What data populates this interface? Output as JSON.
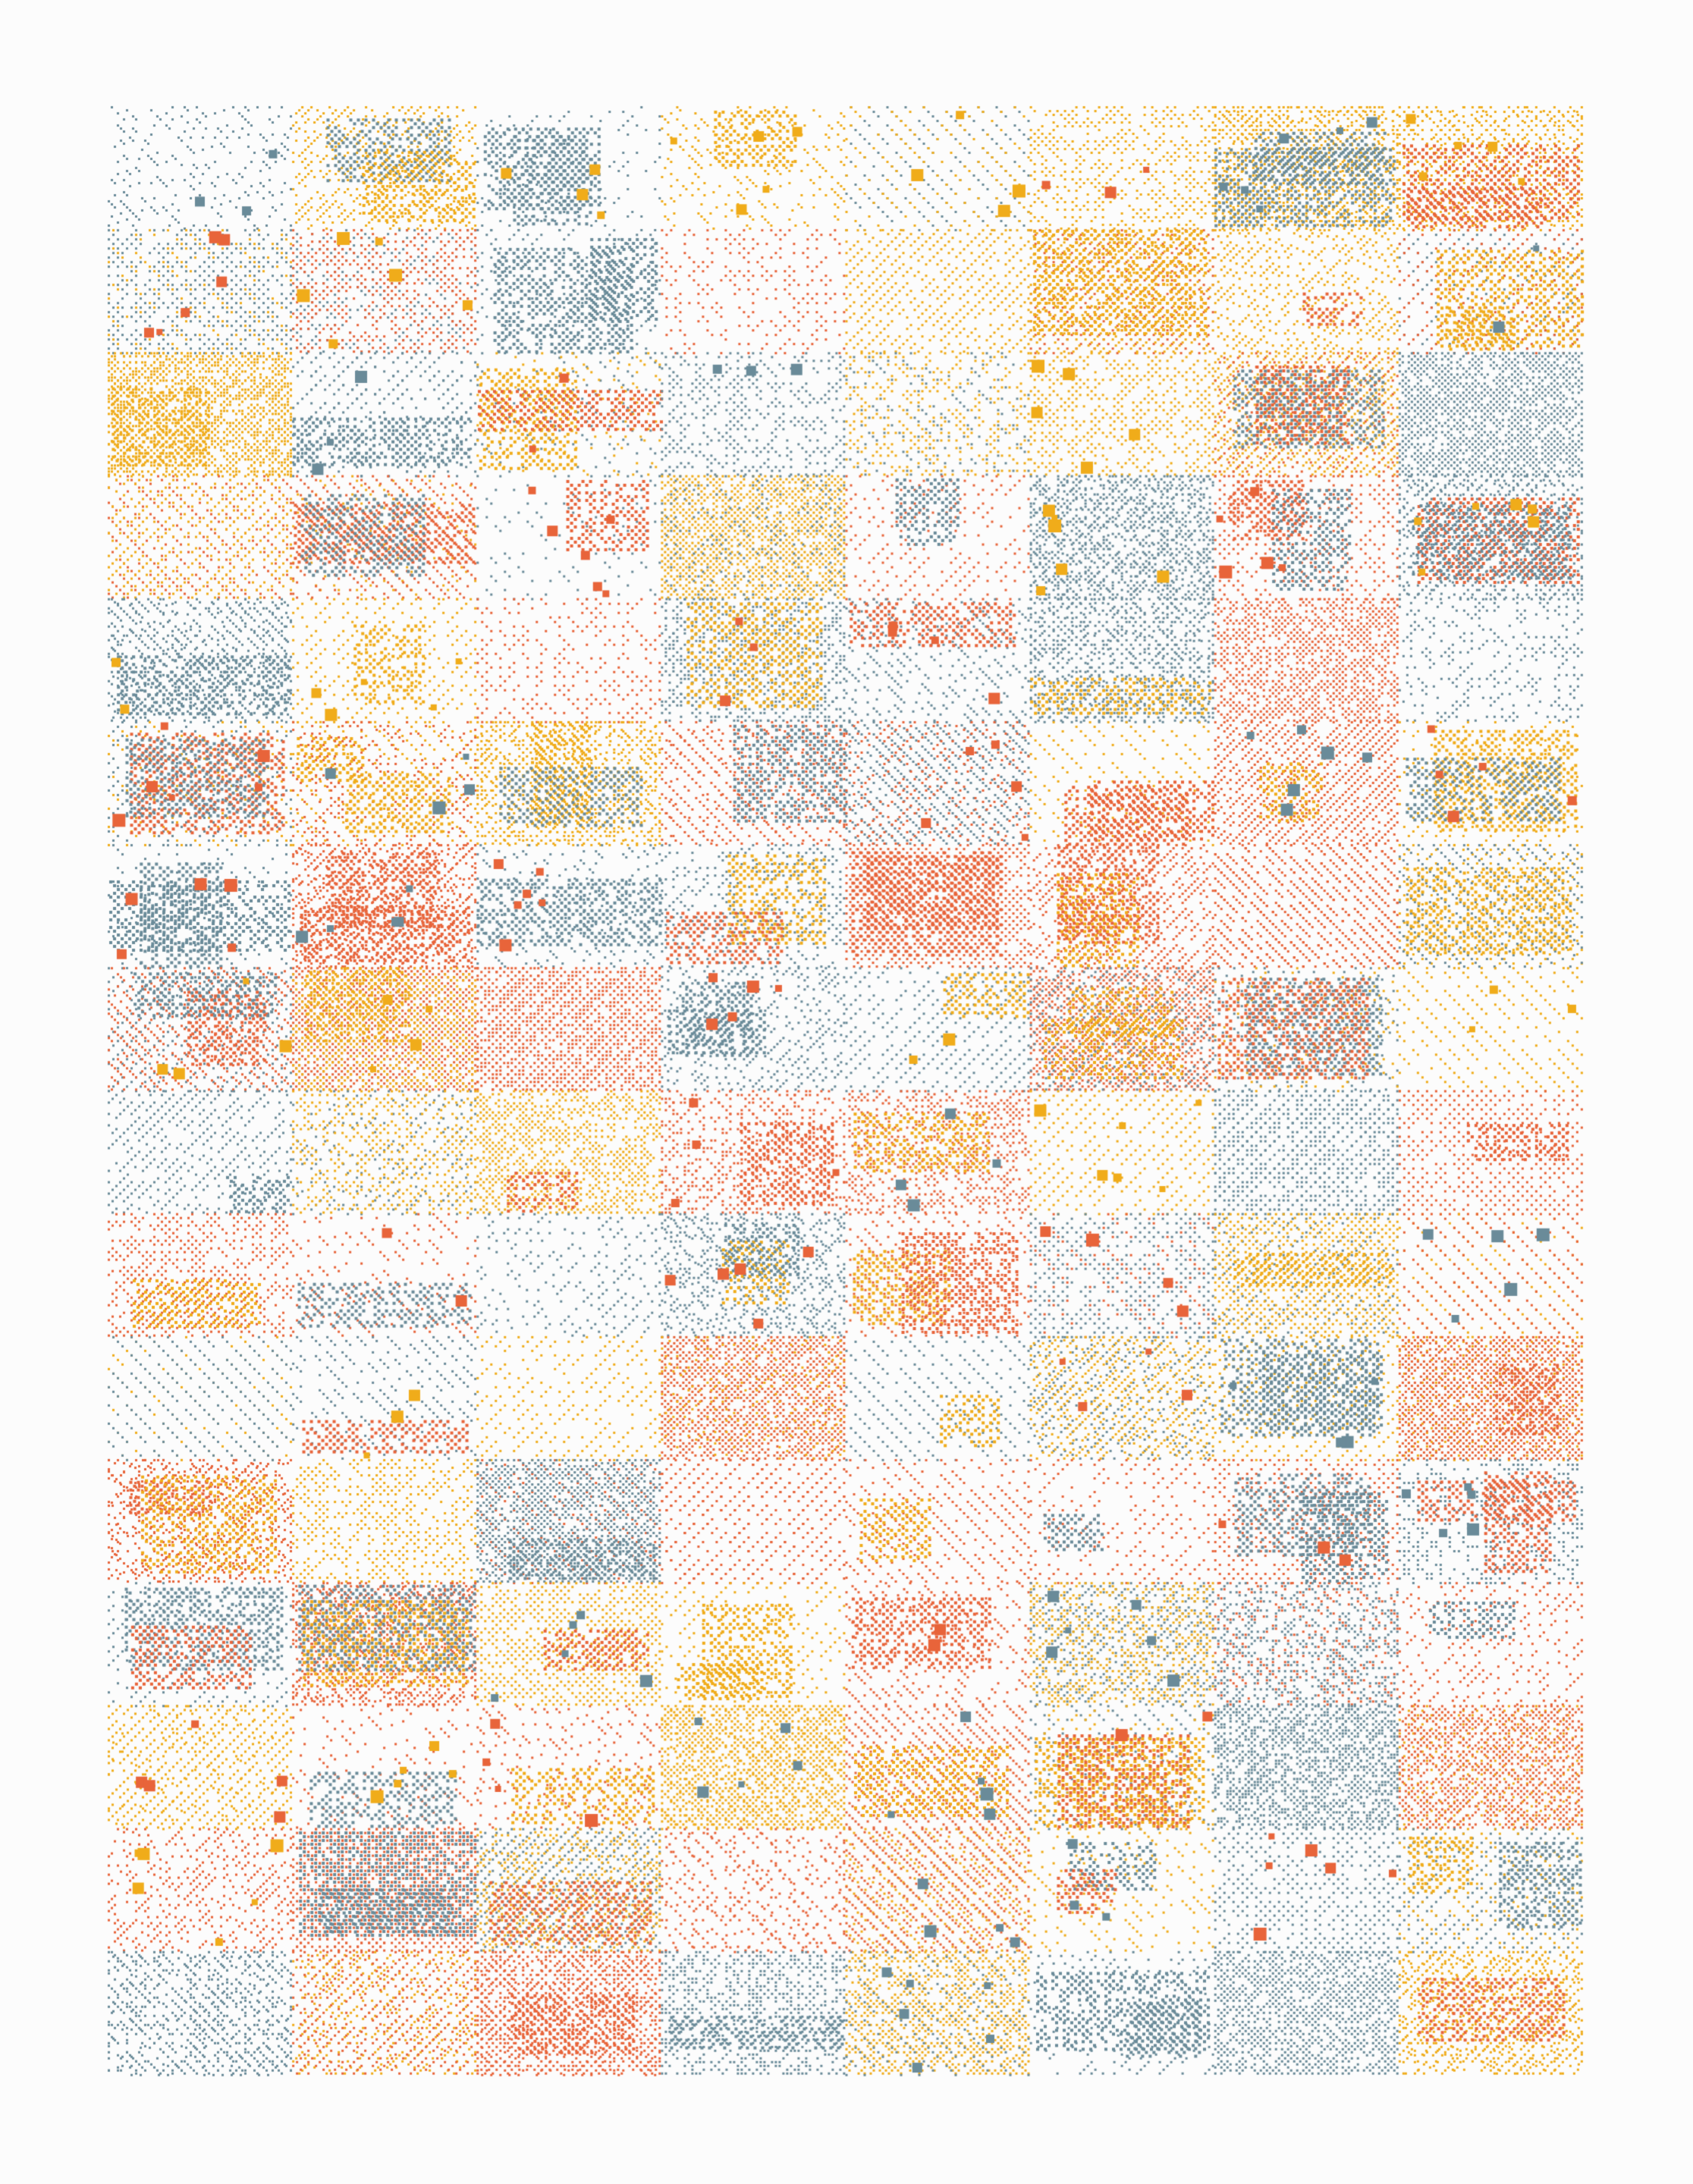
{
  "artwork": {
    "background": "#fcfcfc",
    "palette": {
      "orange": "#e8643a",
      "yellow": "#f0ac1a",
      "slate": "#6a8b99"
    },
    "grid": {
      "columns": 8,
      "rows": 16
    }
  }
}
